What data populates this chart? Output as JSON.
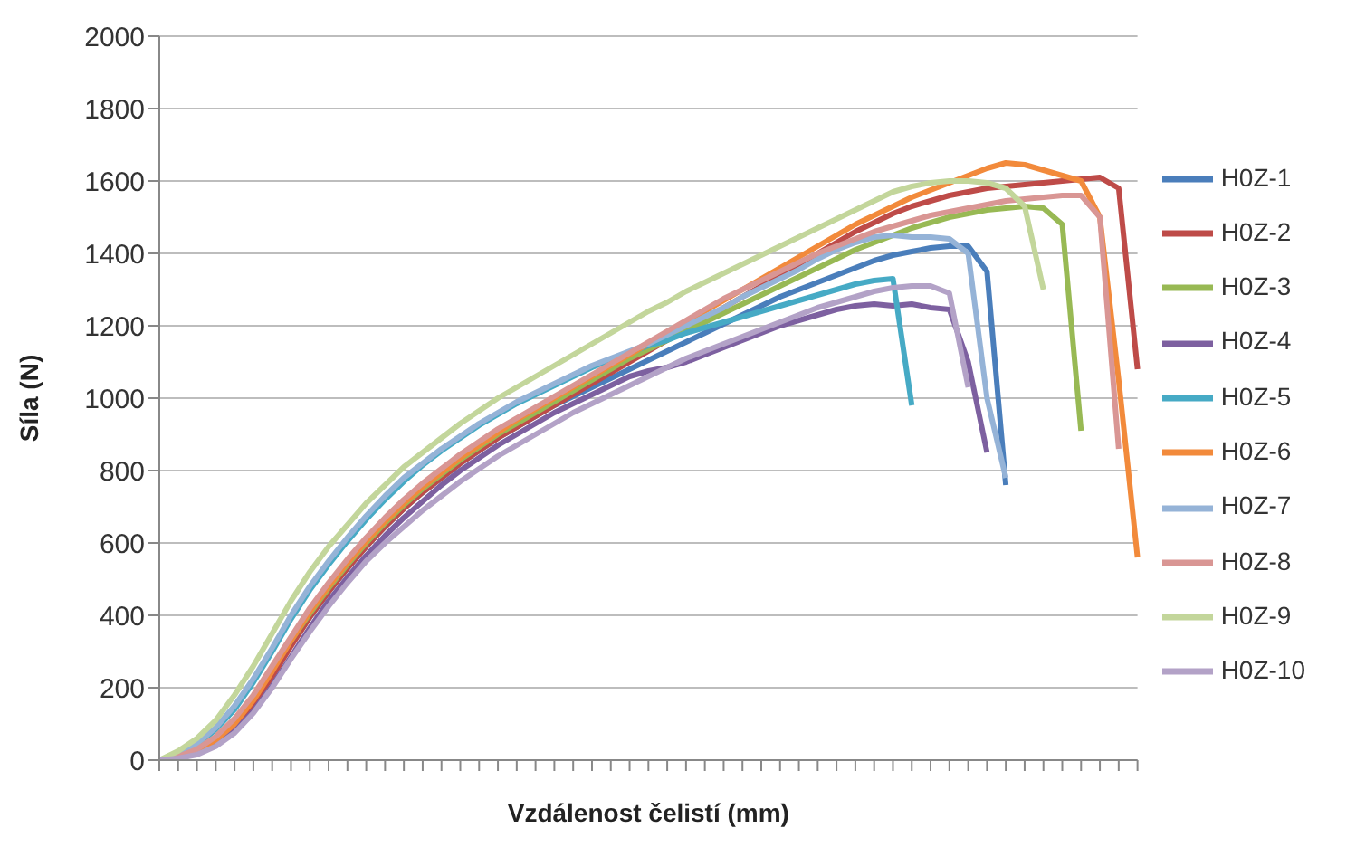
{
  "chart_data": {
    "type": "line",
    "xlabel": "Vzdálenost čelistí (mm)",
    "ylabel": "Síla (N)",
    "categories": [
      null,
      null,
      null,
      null,
      null,
      null,
      null,
      null,
      null,
      null,
      null,
      null,
      null,
      null,
      null,
      null,
      null,
      null,
      null,
      null,
      null,
      null,
      null,
      null,
      null,
      null,
      null,
      null,
      null,
      null,
      null,
      null,
      null,
      null,
      null,
      null,
      null,
      null,
      null,
      null,
      null,
      null,
      null,
      null,
      null,
      null,
      null,
      null,
      null,
      null,
      null,
      null,
      null
    ],
    "ylim": [
      0,
      2000
    ],
    "yticks": [
      0,
      200,
      400,
      600,
      800,
      1000,
      1200,
      1400,
      1600,
      1800,
      2000
    ],
    "grid": "y",
    "legend": "right",
    "marker": "none",
    "line_style": "solid",
    "series": [
      {
        "name": "H0Z-1",
        "color": "#4a7ebb",
        "values": [
          0,
          8,
          22,
          50,
          95,
          160,
          240,
          320,
          395,
          465,
          530,
          590,
          645,
          695,
          740,
          780,
          820,
          855,
          890,
          920,
          950,
          980,
          1005,
          1030,
          1055,
          1080,
          1105,
          1130,
          1155,
          1180,
          1205,
          1230,
          1255,
          1280,
          1300,
          1320,
          1340,
          1360,
          1380,
          1395,
          1405,
          1415,
          1420,
          1420,
          1350,
          760,
          null,
          null,
          null,
          null,
          null,
          null,
          null
        ]
      },
      {
        "name": "H0Z-2",
        "color": "#be4b48",
        "values": [
          0,
          8,
          22,
          50,
          95,
          155,
          230,
          315,
          395,
          465,
          530,
          590,
          645,
          695,
          740,
          780,
          820,
          855,
          890,
          920,
          950,
          980,
          1010,
          1040,
          1070,
          1100,
          1130,
          1160,
          1190,
          1220,
          1250,
          1280,
          1310,
          1340,
          1370,
          1400,
          1430,
          1460,
          1485,
          1510,
          1530,
          1545,
          1560,
          1570,
          1580,
          1585,
          1590,
          1595,
          1600,
          1605,
          1610,
          1580,
          1080
        ]
      },
      {
        "name": "H0Z-3",
        "color": "#98b954",
        "values": [
          0,
          10,
          28,
          60,
          110,
          175,
          250,
          330,
          405,
          475,
          540,
          600,
          655,
          705,
          750,
          790,
          830,
          865,
          900,
          930,
          960,
          990,
          1020,
          1050,
          1080,
          1110,
          1135,
          1160,
          1185,
          1210,
          1235,
          1260,
          1285,
          1310,
          1335,
          1360,
          1385,
          1410,
          1430,
          1450,
          1470,
          1485,
          1500,
          1510,
          1520,
          1525,
          1530,
          1525,
          1480,
          910,
          null,
          null,
          null
        ]
      },
      {
        "name": "H0Z-4",
        "color": "#7d60a0",
        "values": [
          0,
          5,
          18,
          40,
          80,
          135,
          205,
          285,
          365,
          440,
          505,
          565,
          620,
          670,
          715,
          760,
          800,
          835,
          870,
          900,
          930,
          960,
          985,
          1010,
          1035,
          1060,
          1075,
          1085,
          1100,
          1120,
          1140,
          1160,
          1180,
          1200,
          1215,
          1230,
          1245,
          1255,
          1260,
          1255,
          1260,
          1250,
          1245,
          1100,
          850,
          null,
          null,
          null,
          null,
          null,
          null,
          null,
          null
        ]
      },
      {
        "name": "H0Z-5",
        "color": "#46aac5",
        "values": [
          0,
          15,
          40,
          85,
          140,
          215,
          300,
          390,
          470,
          540,
          605,
          665,
          720,
          770,
          815,
          855,
          890,
          925,
          955,
          985,
          1010,
          1035,
          1060,
          1085,
          1105,
          1125,
          1145,
          1160,
          1180,
          1195,
          1210,
          1225,
          1240,
          1255,
          1270,
          1285,
          1300,
          1315,
          1325,
          1330,
          980,
          null,
          null,
          null,
          null,
          null,
          null,
          null,
          null,
          null,
          null,
          null,
          null
        ]
      },
      {
        "name": "H0Z-6",
        "color": "#f28a3b",
        "values": [
          0,
          10,
          25,
          55,
          100,
          165,
          245,
          330,
          410,
          480,
          545,
          605,
          660,
          710,
          755,
          795,
          835,
          870,
          905,
          940,
          970,
          1000,
          1030,
          1060,
          1090,
          1120,
          1150,
          1180,
          1210,
          1240,
          1270,
          1300,
          1330,
          1360,
          1390,
          1420,
          1450,
          1480,
          1505,
          1530,
          1555,
          1575,
          1595,
          1615,
          1635,
          1650,
          1645,
          1630,
          1615,
          1600,
          1500,
          1050,
          560
        ]
      },
      {
        "name": "H0Z-7",
        "color": "#95b3d7",
        "values": [
          0,
          15,
          45,
          90,
          150,
          225,
          310,
          400,
          480,
          550,
          615,
          675,
          730,
          780,
          820,
          860,
          895,
          930,
          960,
          990,
          1015,
          1040,
          1065,
          1090,
          1110,
          1130,
          1150,
          1175,
          1200,
          1225,
          1250,
          1280,
          1305,
          1330,
          1355,
          1385,
          1410,
          1430,
          1445,
          1450,
          1445,
          1445,
          1440,
          1400,
          1000,
          780,
          null,
          null,
          null,
          null,
          null,
          null,
          null
        ]
      },
      {
        "name": "H0Z-8",
        "color": "#d99694",
        "values": [
          0,
          10,
          30,
          65,
          115,
          180,
          260,
          340,
          420,
          490,
          555,
          615,
          670,
          720,
          765,
          805,
          845,
          880,
          915,
          945,
          975,
          1005,
          1035,
          1065,
          1095,
          1125,
          1155,
          1185,
          1215,
          1245,
          1275,
          1300,
          1325,
          1350,
          1375,
          1400,
          1420,
          1440,
          1460,
          1475,
          1490,
          1505,
          1515,
          1525,
          1535,
          1545,
          1550,
          1555,
          1560,
          1560,
          1500,
          860,
          null
        ]
      },
      {
        "name": "H0Z-9",
        "color": "#c3d69b",
        "values": [
          0,
          25,
          60,
          110,
          180,
          260,
          350,
          440,
          520,
          590,
          650,
          710,
          760,
          810,
          850,
          890,
          930,
          965,
          1000,
          1030,
          1060,
          1090,
          1120,
          1150,
          1180,
          1210,
          1240,
          1265,
          1295,
          1320,
          1345,
          1370,
          1395,
          1420,
          1445,
          1470,
          1495,
          1520,
          1545,
          1570,
          1585,
          1595,
          1600,
          1600,
          1595,
          1580,
          1530,
          1300,
          null,
          null,
          null,
          null,
          null
        ]
      },
      {
        "name": "H0Z-10",
        "color": "#b3a2c7",
        "values": [
          0,
          5,
          15,
          38,
          75,
          130,
          200,
          280,
          355,
          425,
          490,
          550,
          600,
          645,
          690,
          730,
          770,
          805,
          840,
          870,
          900,
          930,
          960,
          985,
          1010,
          1035,
          1060,
          1085,
          1110,
          1130,
          1150,
          1170,
          1190,
          1210,
          1230,
          1250,
          1265,
          1280,
          1295,
          1305,
          1310,
          1310,
          1290,
          1030,
          null,
          null,
          null,
          null,
          null,
          null,
          null,
          null,
          null
        ]
      }
    ]
  }
}
